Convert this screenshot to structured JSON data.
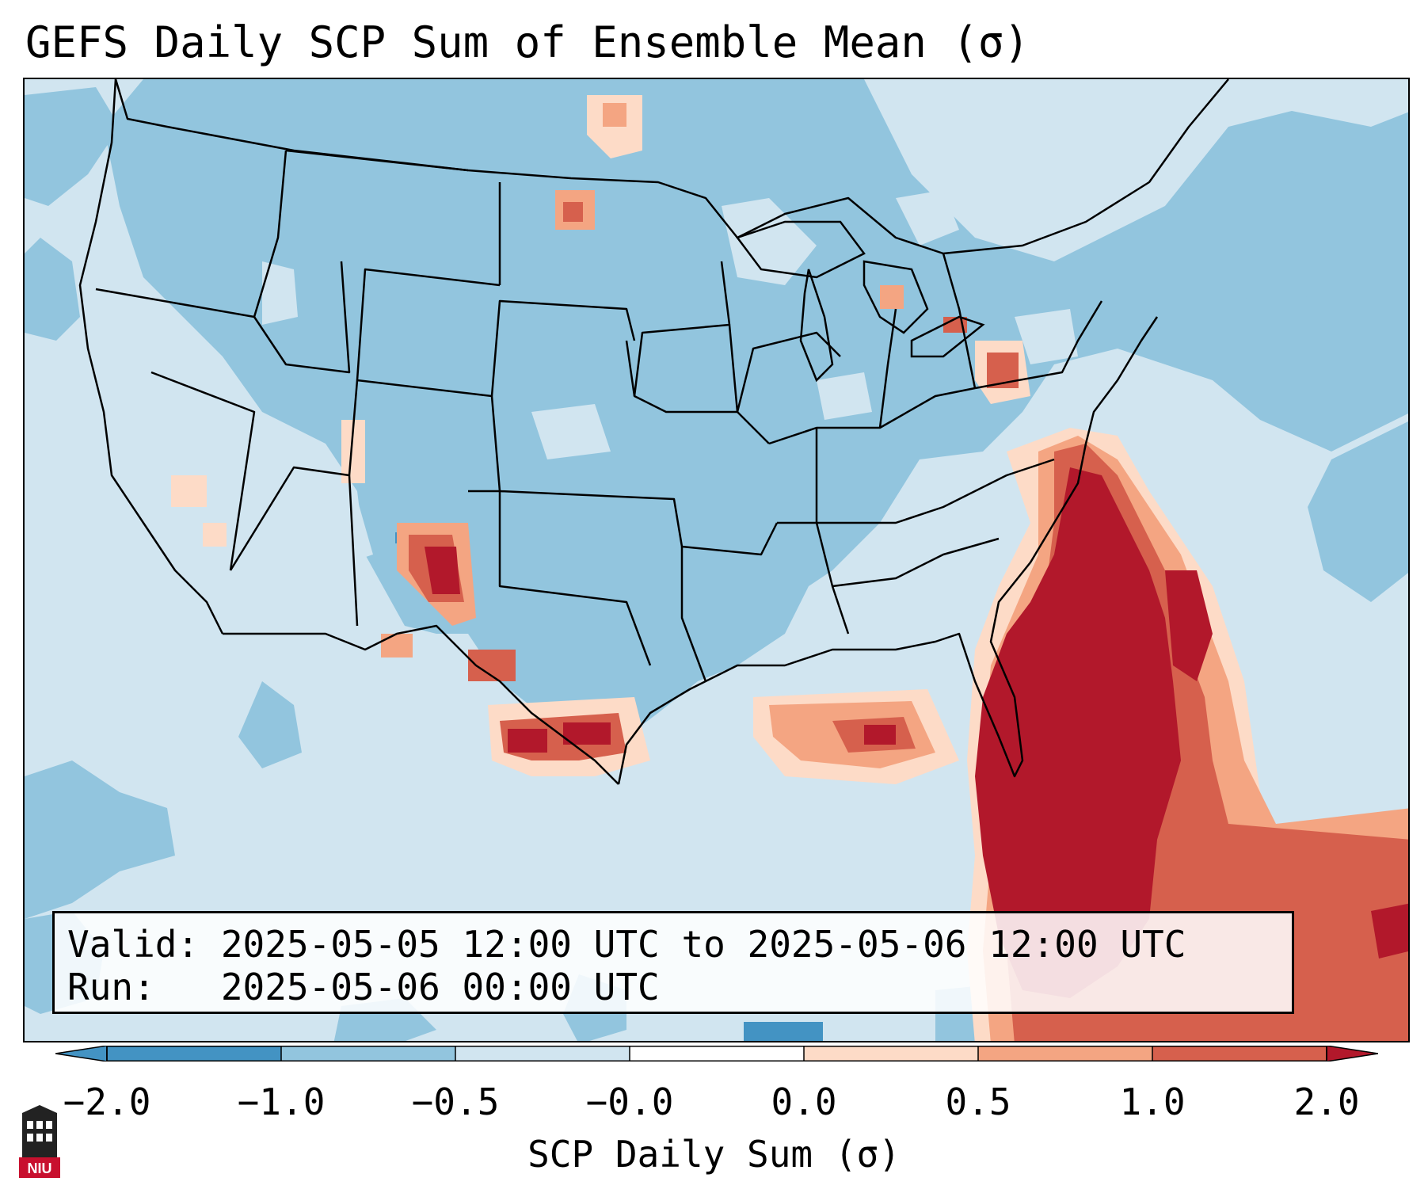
{
  "title": "GEFS Daily SCP Sum of Ensemble Mean (σ)",
  "valid_label": "Valid: 2025-05-05 12:00 UTC to 2025-05-06 12:00 UTC",
  "run_label": "Run:   2025-05-06 00:00 UTC",
  "colorbar": {
    "label": "SCP Daily Sum (σ)",
    "ticks": [
      "−2.0",
      "−1.0",
      "−0.5",
      "−0.0",
      "0.0",
      "0.5",
      "1.0",
      "2.0"
    ],
    "colors": [
      "#4393c3",
      "#92c5de",
      "#d1e5f0",
      "#ffffff",
      "#fddbc7",
      "#f4a582",
      "#d6604d",
      "#b2182b"
    ],
    "extend": "both"
  },
  "map": {
    "region": "CONUS",
    "colors": {
      "strong_negative": "#4393c3",
      "negative": "#92c5de",
      "weak_negative": "#d1e5f0",
      "weak_positive": "#fddbc7",
      "positive": "#f4a582",
      "strong_positive": "#d6604d",
      "extreme_positive": "#b2182b"
    }
  },
  "logo": {
    "text": "NIU",
    "icon": "niu-logo-icon"
  }
}
